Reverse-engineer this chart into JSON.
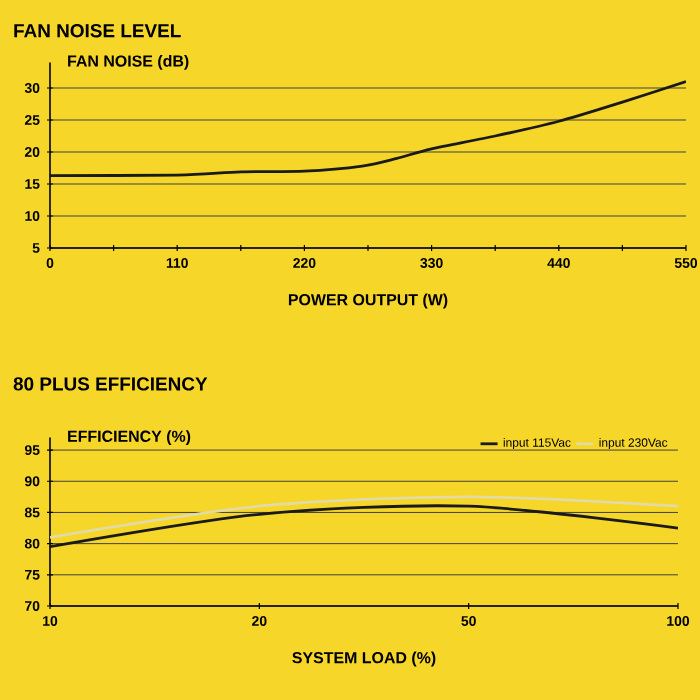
{
  "chart_data": [
    {
      "type": "line",
      "title": "FAN NOISE LEVEL",
      "ylabel": "FAN NOISE (dB)",
      "xlabel": "POWER OUTPUT (W)",
      "x": [
        0,
        110,
        165,
        220,
        270,
        300,
        330,
        385,
        440,
        495,
        550
      ],
      "series": [
        {
          "color": "#1a1a1a",
          "values": [
            16.3,
            16.4,
            16.9,
            17.0,
            17.8,
            19.0,
            20.5,
            22.5,
            24.8,
            27.8,
            31.0
          ]
        }
      ],
      "xlim": [
        0,
        550
      ],
      "ylim": [
        5,
        34
      ],
      "xticks": [
        0,
        {
          "value": 55,
          "label": null
        },
        110,
        {
          "value": 165,
          "label": null
        },
        220,
        {
          "value": 275,
          "label": null
        },
        330,
        {
          "value": 385,
          "label": null
        },
        440,
        {
          "value": 495,
          "label": null
        },
        550
      ],
      "yticks": [
        5,
        10,
        15,
        20,
        25,
        30
      ],
      "grid": "y"
    },
    {
      "type": "line",
      "title": "80 PLUS EFFICIENCY",
      "ylabel": "EFFICIENCY (%)",
      "xlabel": "SYSTEM LOAD (%)",
      "categories": [
        "10",
        "20",
        "50",
        "100"
      ],
      "series": [
        {
          "name": "input 115Vac",
          "color": "#1a1a1a",
          "values": [
            79.5,
            84.7,
            86.0,
            82.5
          ]
        },
        {
          "name": "input 230Vac",
          "color": "#e2dca4",
          "values": [
            81.0,
            86.0,
            87.5,
            86.0
          ]
        }
      ],
      "ylim": [
        70,
        97
      ],
      "yticks": [
        70,
        75,
        80,
        85,
        90,
        95
      ],
      "grid": "y",
      "legend": "top right"
    }
  ]
}
